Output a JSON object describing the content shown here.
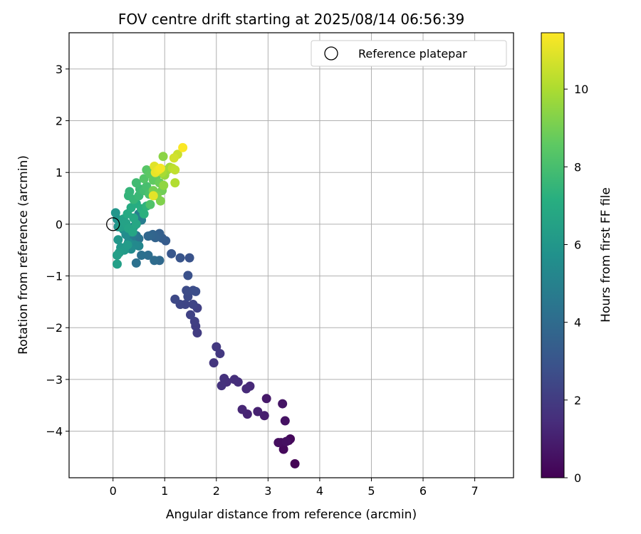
{
  "chart_data": {
    "type": "scatter",
    "title": "FOV centre drift starting at 2025/08/14 06:56:39",
    "xlabel": "Angular distance from reference (arcmin)",
    "ylabel": "Rotation from reference (arcmin)",
    "xlim": [
      -0.85,
      7.75
    ],
    "ylim": [
      -4.9,
      3.7
    ],
    "xticks": [
      0,
      1,
      2,
      3,
      4,
      5,
      6,
      7
    ],
    "yticks": [
      -4,
      -3,
      -2,
      -1,
      0,
      1,
      2,
      3
    ],
    "grid": true,
    "legend": {
      "position": "top-right",
      "entries": [
        "Reference platepar"
      ]
    },
    "reference_point": {
      "x": 0,
      "y": 0,
      "label": "Reference platepar"
    },
    "colorbar": {
      "label": "Hours from first FF file",
      "colormap": "viridis",
      "range": [
        0,
        11.45
      ],
      "ticks": [
        0,
        2,
        4,
        6,
        8,
        10
      ]
    },
    "points": [
      [
        3.52,
        -4.63,
        0.05
      ],
      [
        3.4,
        -4.18,
        0.15
      ],
      [
        3.43,
        -4.15,
        0.22
      ],
      [
        3.3,
        -4.35,
        0.28
      ],
      [
        3.25,
        -4.22,
        0.35
      ],
      [
        3.2,
        -4.22,
        0.42
      ],
      [
        3.35,
        -4.2,
        0.5
      ],
      [
        3.33,
        -3.8,
        0.58
      ],
      [
        3.28,
        -3.47,
        0.65
      ],
      [
        2.97,
        -3.37,
        0.8
      ],
      [
        2.93,
        -3.7,
        0.95
      ],
      [
        2.8,
        -3.62,
        1.05
      ],
      [
        2.6,
        -3.67,
        1.15
      ],
      [
        2.5,
        -3.58,
        1.25
      ],
      [
        2.65,
        -3.13,
        1.35
      ],
      [
        2.58,
        -3.18,
        1.4
      ],
      [
        2.42,
        -3.05,
        1.5
      ],
      [
        2.35,
        -3.0,
        1.55
      ],
      [
        2.2,
        -3.05,
        1.6
      ],
      [
        2.15,
        -2.98,
        1.65
      ],
      [
        2.1,
        -3.12,
        1.7
      ],
      [
        1.95,
        -2.68,
        1.8
      ],
      [
        2.07,
        -2.5,
        1.9
      ],
      [
        2.0,
        -2.37,
        1.95
      ],
      [
        1.63,
        -2.1,
        2.05
      ],
      [
        1.6,
        -1.97,
        2.1
      ],
      [
        1.58,
        -1.88,
        2.15
      ],
      [
        1.63,
        -1.62,
        2.2
      ],
      [
        1.5,
        -1.75,
        2.3
      ],
      [
        1.55,
        -1.55,
        2.35
      ],
      [
        1.4,
        -1.55,
        2.4
      ],
      [
        1.3,
        -1.55,
        2.45
      ],
      [
        1.2,
        -1.45,
        2.55
      ],
      [
        1.45,
        -1.4,
        2.6
      ],
      [
        1.42,
        -1.28,
        2.65
      ],
      [
        1.55,
        -1.28,
        2.7
      ],
      [
        1.6,
        -1.3,
        2.75
      ],
      [
        1.45,
        -0.99,
        2.85
      ],
      [
        1.48,
        -0.65,
        2.95
      ],
      [
        1.3,
        -0.65,
        3.05
      ],
      [
        1.13,
        -0.57,
        3.15
      ],
      [
        1.02,
        -0.32,
        3.3
      ],
      [
        0.95,
        -0.27,
        3.4
      ],
      [
        0.9,
        -0.18,
        3.5
      ],
      [
        0.85,
        -0.22,
        3.6
      ],
      [
        0.82,
        -0.26,
        3.65
      ],
      [
        0.77,
        -0.2,
        3.7
      ],
      [
        0.73,
        -0.22,
        3.75
      ],
      [
        0.68,
        -0.23,
        3.85
      ],
      [
        0.9,
        -0.7,
        3.95
      ],
      [
        0.8,
        -0.7,
        4.05
      ],
      [
        0.68,
        -0.6,
        4.15
      ],
      [
        0.55,
        -0.6,
        4.25
      ],
      [
        0.45,
        -0.75,
        4.3
      ],
      [
        0.5,
        -0.28,
        4.4
      ],
      [
        0.45,
        -0.22,
        4.5
      ],
      [
        0.4,
        -0.2,
        4.6
      ],
      [
        0.35,
        -0.3,
        4.7
      ],
      [
        0.3,
        -0.25,
        4.8
      ],
      [
        0.55,
        0.08,
        4.85
      ],
      [
        0.5,
        0.2,
        4.9
      ],
      [
        0.45,
        0.02,
        5.0
      ],
      [
        0.4,
        -0.05,
        5.1
      ],
      [
        0.35,
        -0.15,
        5.2
      ],
      [
        0.5,
        -0.42,
        5.3
      ],
      [
        0.42,
        -0.4,
        5.4
      ],
      [
        0.35,
        -0.48,
        5.5
      ],
      [
        0.3,
        -0.35,
        5.55
      ],
      [
        0.25,
        -0.2,
        5.6
      ],
      [
        0.2,
        -0.1,
        5.7
      ],
      [
        0.15,
        0.0,
        5.8
      ],
      [
        0.1,
        -0.05,
        5.85
      ],
      [
        0.08,
        0.1,
        5.9
      ],
      [
        0.05,
        0.22,
        6.0
      ],
      [
        0.1,
        -0.3,
        6.05
      ],
      [
        0.15,
        -0.45,
        6.1
      ],
      [
        0.22,
        -0.5,
        6.2
      ],
      [
        0.28,
        -0.4,
        6.25
      ],
      [
        0.12,
        -0.55,
        6.3
      ],
      [
        0.08,
        -0.6,
        6.4
      ],
      [
        0.08,
        -0.77,
        6.45
      ],
      [
        0.15,
        -0.05,
        6.5
      ],
      [
        0.2,
        0.1,
        6.55
      ],
      [
        0.25,
        0.02,
        6.6
      ],
      [
        0.3,
        -0.08,
        6.7
      ],
      [
        0.38,
        -0.15,
        6.75
      ],
      [
        0.45,
        0.0,
        6.8
      ],
      [
        0.4,
        0.12,
        6.85
      ],
      [
        0.28,
        0.2,
        6.95
      ],
      [
        0.35,
        0.32,
        7.05
      ],
      [
        0.45,
        0.4,
        7.1
      ],
      [
        0.55,
        0.3,
        7.2
      ],
      [
        0.6,
        0.2,
        7.3
      ],
      [
        0.65,
        0.35,
        7.4
      ],
      [
        0.3,
        0.55,
        7.5
      ],
      [
        0.32,
        0.63,
        7.55
      ],
      [
        0.4,
        0.48,
        7.6
      ],
      [
        0.5,
        0.55,
        7.7
      ],
      [
        0.52,
        0.68,
        7.75
      ],
      [
        0.45,
        0.8,
        7.85
      ],
      [
        0.6,
        0.65,
        7.95
      ],
      [
        0.65,
        0.73,
        8.05
      ],
      [
        0.7,
        0.58,
        8.15
      ],
      [
        0.72,
        0.38,
        8.25
      ],
      [
        0.6,
        0.88,
        8.35
      ],
      [
        0.65,
        1.05,
        8.45
      ],
      [
        0.72,
        0.97,
        8.55
      ],
      [
        0.78,
        0.85,
        8.65
      ],
      [
        0.85,
        0.95,
        8.75
      ],
      [
        0.9,
        0.8,
        8.85
      ],
      [
        0.95,
        0.65,
        8.95
      ],
      [
        0.78,
        0.65,
        9.05
      ],
      [
        0.85,
        0.55,
        9.15
      ],
      [
        0.92,
        0.45,
        9.25
      ],
      [
        0.95,
        1.05,
        9.35
      ],
      [
        0.97,
        1.31,
        9.45
      ],
      [
        0.98,
        0.75,
        9.55
      ],
      [
        1.0,
        0.95,
        9.65
      ],
      [
        1.05,
        1.05,
        9.75
      ],
      [
        1.1,
        1.1,
        9.85
      ],
      [
        0.95,
        1.0,
        9.95
      ],
      [
        0.9,
        1.05,
        10.05
      ],
      [
        1.2,
        0.8,
        10.15
      ],
      [
        1.15,
        1.08,
        10.3
      ],
      [
        1.2,
        1.05,
        10.4
      ],
      [
        1.25,
        1.35,
        10.55
      ],
      [
        1.18,
        1.28,
        10.7
      ],
      [
        0.85,
        1.08,
        10.85
      ],
      [
        0.8,
        1.12,
        10.95
      ],
      [
        0.78,
        0.55,
        11.0
      ],
      [
        0.82,
        1.0,
        11.1
      ],
      [
        0.88,
        1.05,
        11.2
      ],
      [
        0.92,
        1.08,
        11.3
      ],
      [
        1.35,
        1.48,
        11.4
      ]
    ]
  }
}
